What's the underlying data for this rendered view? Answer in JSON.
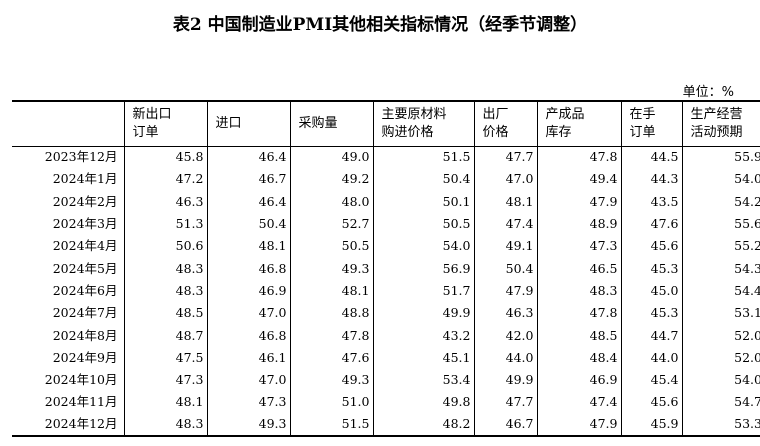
{
  "title": "表2 中国制造业PMI其他相关指标情况（经季节调整）",
  "unit": "单位：%",
  "columns": [
    "",
    "新出口\n订单",
    "进口",
    "采购量",
    "主要原材料\n购进价格",
    "出厂\n价格",
    "产成品\n库存",
    "在手\n订单",
    "生产经营\n活动预期"
  ],
  "rows": [
    [
      "2023年12月",
      "45.8",
      "46.4",
      "49.0",
      "51.5",
      "47.7",
      "47.8",
      "44.5",
      "55.9"
    ],
    [
      "2024年1月",
      "47.2",
      "46.7",
      "49.2",
      "50.4",
      "47.0",
      "49.4",
      "44.3",
      "54.0"
    ],
    [
      "2024年2月",
      "46.3",
      "46.4",
      "48.0",
      "50.1",
      "48.1",
      "47.9",
      "43.5",
      "54.2"
    ],
    [
      "2024年3月",
      "51.3",
      "50.4",
      "52.7",
      "50.5",
      "47.4",
      "48.9",
      "47.6",
      "55.6"
    ],
    [
      "2024年4月",
      "50.6",
      "48.1",
      "50.5",
      "54.0",
      "49.1",
      "47.3",
      "45.6",
      "55.2"
    ],
    [
      "2024年5月",
      "48.3",
      "46.8",
      "49.3",
      "56.9",
      "50.4",
      "46.5",
      "45.3",
      "54.3"
    ],
    [
      "2024年6月",
      "48.3",
      "46.9",
      "48.1",
      "51.7",
      "47.9",
      "48.3",
      "45.0",
      "54.4"
    ],
    [
      "2024年7月",
      "48.5",
      "47.0",
      "48.8",
      "49.9",
      "46.3",
      "47.8",
      "45.3",
      "53.1"
    ],
    [
      "2024年8月",
      "48.7",
      "46.8",
      "47.8",
      "43.2",
      "42.0",
      "48.5",
      "44.7",
      "52.0"
    ],
    [
      "2024年9月",
      "47.5",
      "46.1",
      "47.6",
      "45.1",
      "44.0",
      "48.4",
      "44.0",
      "52.0"
    ],
    [
      "2024年10月",
      "47.3",
      "47.0",
      "49.3",
      "53.4",
      "49.9",
      "46.9",
      "45.4",
      "54.0"
    ],
    [
      "2024年11月",
      "48.1",
      "47.3",
      "51.0",
      "49.8",
      "47.7",
      "47.4",
      "45.6",
      "54.7"
    ],
    [
      "2024年12月",
      "48.3",
      "49.3",
      "51.5",
      "48.2",
      "46.7",
      "47.9",
      "45.9",
      "53.3"
    ]
  ]
}
